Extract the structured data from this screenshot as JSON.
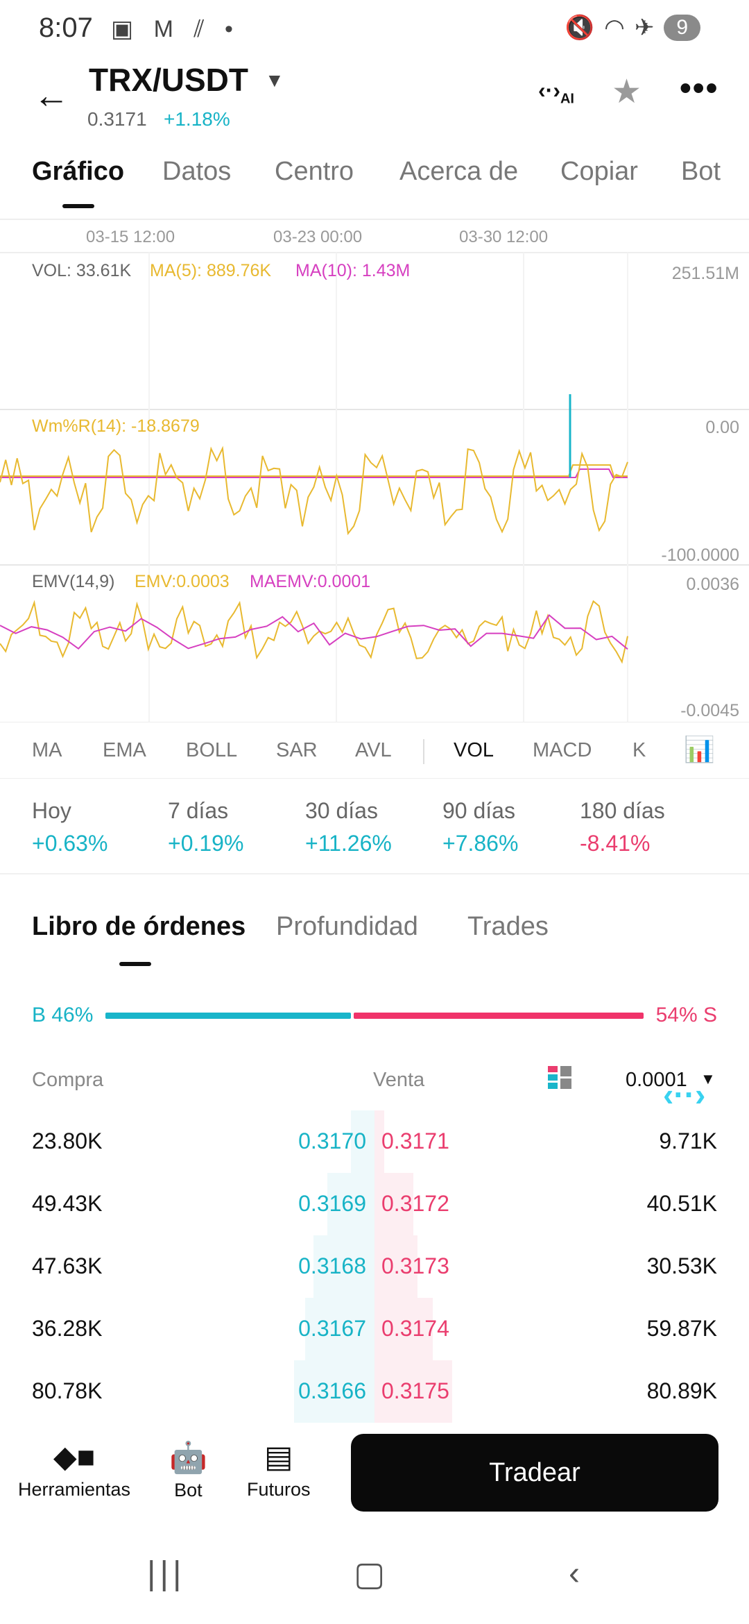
{
  "status": {
    "time": "8:07",
    "left_icons": "▣ M ⫽ •",
    "battery": "9"
  },
  "header": {
    "pair": "TRX/USDT",
    "price": "0.3171",
    "change": "+1.18%",
    "ai_label": "AI"
  },
  "tabs": [
    "Gráfico",
    "Datos",
    "Centro",
    "Acerca de",
    "Copiar",
    "Bot"
  ],
  "chart": {
    "dates": [
      "03-15 12:00",
      "03-23 00:00",
      "03-30 12:00"
    ],
    "vol": {
      "label": "VOL: 33.61K",
      "ma5": "MA(5): 889.76K",
      "ma10": "MA(10): 1.43M",
      "max": "251.51M"
    },
    "wmr": {
      "label": "Wm%R(14): -18.8679",
      "top": "0.00",
      "bottom": "-100.0000"
    },
    "emv": {
      "label": "EMV(14,9)",
      "emv": "EMV:0.0003",
      "maemv": "MAEMV:0.0001",
      "top": "0.0036",
      "bottom": "-0.0045"
    },
    "colors": {
      "yellow": "#e8b930",
      "magenta": "#d63fc0",
      "cyan": "#19b5ca"
    }
  },
  "indicator_tabs": [
    "MA",
    "EMA",
    "BOLL",
    "SAR",
    "AVL",
    "VOL",
    "MACD",
    "K"
  ],
  "periods": [
    {
      "label": "Hoy",
      "value": "+0.63%"
    },
    {
      "label": "7 días",
      "value": "+0.19%"
    },
    {
      "label": "30 días",
      "value": "+11.26%"
    },
    {
      "label": "90 días",
      "value": "+7.86%"
    },
    {
      "label": "180 días",
      "value": "-8.41%"
    }
  ],
  "orderbook": {
    "tabs": [
      "Libro de órdenes",
      "Profundidad",
      "Trades"
    ],
    "buy_ratio": "B 46%",
    "sell_ratio": "54% S",
    "buy_header": "Compra",
    "sell_header": "Venta",
    "precision": "0.0001",
    "rows": [
      {
        "buy_amt": "23.80K",
        "buy_price": "0.3170",
        "sell_price": "0.3171",
        "sell_amt": "9.71K"
      },
      {
        "buy_amt": "49.43K",
        "buy_price": "0.3169",
        "sell_price": "0.3172",
        "sell_amt": "40.51K"
      },
      {
        "buy_amt": "47.63K",
        "buy_price": "0.3168",
        "sell_price": "0.3173",
        "sell_amt": "30.53K"
      },
      {
        "buy_amt": "36.28K",
        "buy_price": "0.3167",
        "sell_price": "0.3174",
        "sell_amt": "59.87K"
      },
      {
        "buy_amt": "80.78K",
        "buy_price": "0.3166",
        "sell_price": "0.3175",
        "sell_amt": "80.89K"
      }
    ]
  },
  "bottom": {
    "tools": "Herramientas",
    "bot": "Bot",
    "futures": "Futuros",
    "trade": "Tradear"
  }
}
